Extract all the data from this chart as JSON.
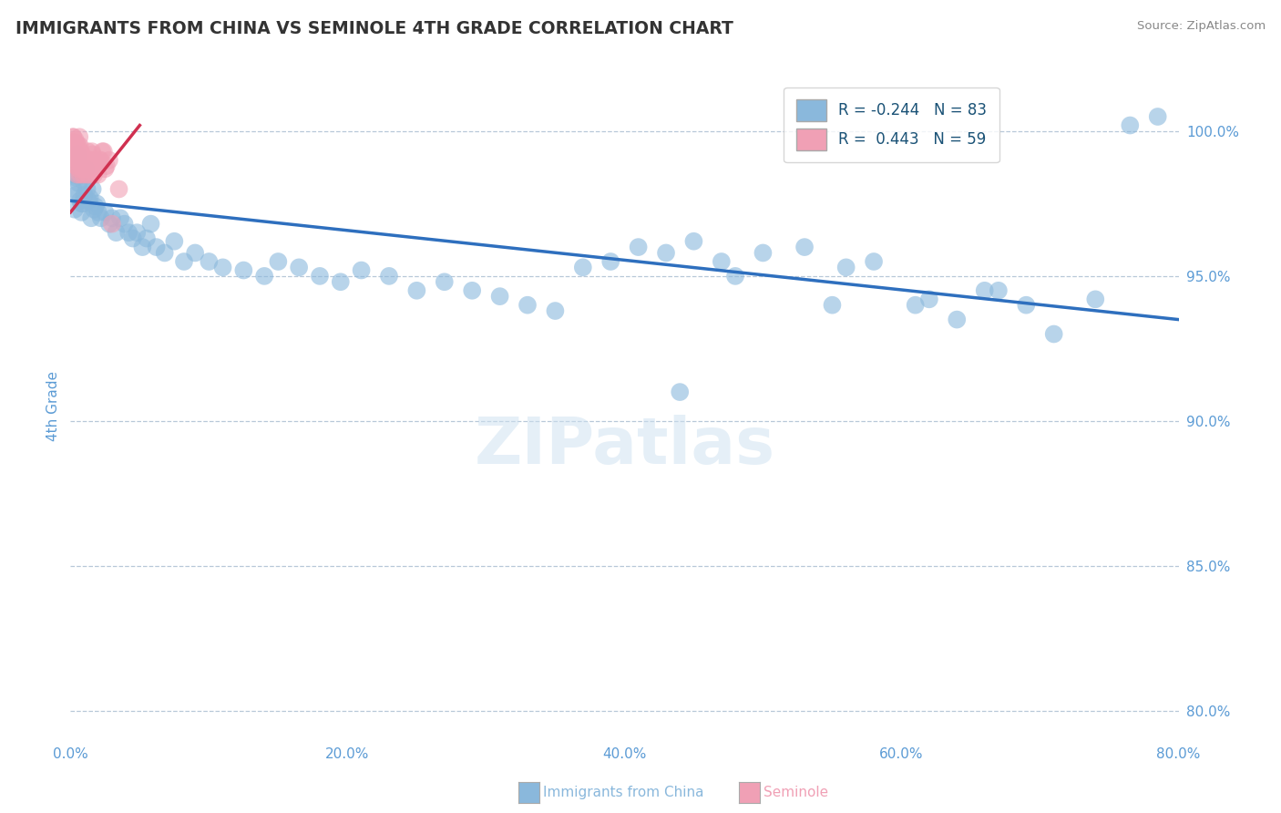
{
  "title": "IMMIGRANTS FROM CHINA VS SEMINOLE 4TH GRADE CORRELATION CHART",
  "source": "Source: ZipAtlas.com",
  "ylabel": "4th Grade",
  "x_tick_labels": [
    "0.0%",
    "20.0%",
    "40.0%",
    "60.0%",
    "80.0%"
  ],
  "x_tick_vals": [
    0.0,
    20.0,
    40.0,
    60.0,
    80.0
  ],
  "y_tick_labels": [
    "80.0%",
    "85.0%",
    "90.0%",
    "95.0%",
    "100.0%"
  ],
  "y_tick_vals": [
    80.0,
    85.0,
    90.0,
    95.0,
    100.0
  ],
  "xlim": [
    0.0,
    80.0
  ],
  "ylim": [
    79.0,
    102.0
  ],
  "blue_R": -0.244,
  "blue_N": 83,
  "pink_R": 0.443,
  "pink_N": 59,
  "blue_color": "#8ab8dc",
  "pink_color": "#f0a0b5",
  "blue_line_color": "#2e6fbe",
  "pink_line_color": "#d03050",
  "title_color": "#333333",
  "axis_label_color": "#5b9bd5",
  "tick_color": "#5b9bd5",
  "grid_color": "#b8c8d8",
  "legend_label_color": "#1a5276",
  "blue_trend_x": [
    0.0,
    80.0
  ],
  "blue_trend_y": [
    97.6,
    93.5
  ],
  "pink_trend_x": [
    0.0,
    5.0
  ],
  "pink_trend_y": [
    97.2,
    100.2
  ],
  "blue_scatter_x": [
    0.3,
    0.5,
    0.7,
    0.4,
    0.6,
    0.8,
    0.2,
    0.9,
    1.1,
    0.5,
    0.6,
    0.7,
    0.4,
    0.8,
    1.0,
    1.2,
    0.3,
    0.9,
    1.4,
    1.6,
    1.8,
    2.0,
    1.3,
    1.5,
    1.7,
    1.9,
    2.2,
    2.5,
    2.8,
    3.0,
    3.3,
    3.6,
    3.9,
    4.2,
    4.5,
    4.8,
    5.2,
    5.5,
    5.8,
    6.2,
    6.8,
    7.5,
    8.2,
    9.0,
    10.0,
    11.0,
    12.5,
    14.0,
    15.0,
    16.5,
    18.0,
    19.5,
    21.0,
    23.0,
    25.0,
    27.0,
    29.0,
    31.0,
    33.0,
    35.0,
    37.0,
    39.0,
    41.0,
    43.0,
    45.0,
    47.0,
    50.0,
    53.0,
    56.0,
    58.0,
    61.0,
    64.0,
    67.0,
    69.0,
    71.0,
    74.0,
    76.5,
    78.5,
    62.0,
    66.0,
    55.0,
    48.0,
    44.0
  ],
  "blue_scatter_y": [
    98.5,
    99.0,
    98.8,
    97.8,
    98.2,
    97.5,
    98.0,
    98.3,
    98.7,
    99.2,
    98.9,
    97.6,
    98.4,
    97.2,
    97.8,
    98.0,
    97.3,
    97.5,
    97.7,
    98.0,
    97.4,
    97.2,
    97.6,
    97.0,
    97.3,
    97.5,
    97.0,
    97.2,
    96.8,
    97.0,
    96.5,
    97.0,
    96.8,
    96.5,
    96.3,
    96.5,
    96.0,
    96.3,
    96.8,
    96.0,
    95.8,
    96.2,
    95.5,
    95.8,
    95.5,
    95.3,
    95.2,
    95.0,
    95.5,
    95.3,
    95.0,
    94.8,
    95.2,
    95.0,
    94.5,
    94.8,
    94.5,
    94.3,
    94.0,
    93.8,
    95.3,
    95.5,
    96.0,
    95.8,
    96.2,
    95.5,
    95.8,
    96.0,
    95.3,
    95.5,
    94.0,
    93.5,
    94.5,
    94.0,
    93.0,
    94.2,
    100.2,
    100.5,
    94.2,
    94.5,
    94.0,
    95.0,
    91.0
  ],
  "pink_scatter_x": [
    0.1,
    0.2,
    0.3,
    0.15,
    0.25,
    0.35,
    0.05,
    0.45,
    0.55,
    0.65,
    0.75,
    0.4,
    0.5,
    0.6,
    0.7,
    0.8,
    0.9,
    1.0,
    1.1,
    1.2,
    1.3,
    1.4,
    1.5,
    1.6,
    1.7,
    1.8,
    1.9,
    2.0,
    2.2,
    2.4,
    2.6,
    2.8,
    0.08,
    0.12,
    0.18,
    0.22,
    0.28,
    0.32,
    0.38,
    0.42,
    0.48,
    0.52,
    0.58,
    0.68,
    0.72,
    0.82,
    0.92,
    1.05,
    1.15,
    1.25,
    1.35,
    1.45,
    1.55,
    1.65,
    2.1,
    2.3,
    2.5,
    3.0,
    3.5
  ],
  "pink_scatter_y": [
    99.5,
    99.8,
    99.3,
    99.6,
    99.2,
    99.7,
    99.4,
    99.0,
    99.5,
    99.8,
    99.3,
    99.6,
    98.8,
    99.0,
    98.5,
    99.2,
    98.7,
    99.0,
    98.8,
    98.5,
    98.8,
    99.0,
    98.7,
    99.2,
    98.5,
    99.0,
    98.8,
    98.5,
    99.0,
    99.3,
    98.8,
    99.0,
    99.5,
    99.3,
    99.8,
    99.6,
    99.0,
    99.4,
    98.8,
    99.2,
    98.5,
    99.0,
    98.7,
    99.5,
    98.8,
    99.2,
    98.5,
    99.0,
    98.7,
    99.3,
    98.5,
    99.0,
    99.3,
    98.8,
    99.0,
    99.3,
    98.7,
    96.8,
    98.0
  ]
}
